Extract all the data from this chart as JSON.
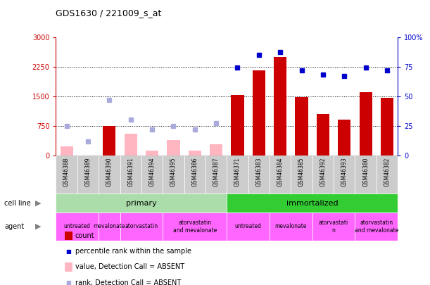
{
  "title": "GDS1630 / 221009_s_at",
  "samples": [
    "GSM46388",
    "GSM46389",
    "GSM46390",
    "GSM46391",
    "GSM46394",
    "GSM46395",
    "GSM46386",
    "GSM46387",
    "GSM46371",
    "GSM46383",
    "GSM46384",
    "GSM46385",
    "GSM46392",
    "GSM46393",
    "GSM46380",
    "GSM46382"
  ],
  "count_values": [
    null,
    null,
    750,
    null,
    null,
    null,
    null,
    null,
    1530,
    2150,
    2500,
    1480,
    1050,
    900,
    1600,
    1460
  ],
  "count_absent": [
    220,
    null,
    null,
    550,
    120,
    390,
    120,
    280,
    null,
    null,
    null,
    null,
    null,
    null,
    null,
    null
  ],
  "percentile_rank": [
    null,
    null,
    null,
    null,
    null,
    null,
    null,
    null,
    74,
    85,
    87,
    72,
    68,
    67,
    74,
    72
  ],
  "percentile_rank_absent": [
    25,
    12,
    47,
    30,
    22,
    25,
    22,
    27,
    null,
    null,
    null,
    null,
    null,
    null,
    null,
    null
  ],
  "ylim_left": [
    0,
    3000
  ],
  "ylim_right": [
    0,
    100
  ],
  "yticks_left": [
    0,
    750,
    1500,
    2250,
    3000
  ],
  "ytick_labels_left": [
    "0",
    "750",
    "1500",
    "2250",
    "3000"
  ],
  "yticks_right": [
    0,
    25,
    50,
    75,
    100
  ],
  "ytick_labels_right": [
    "0",
    "25",
    "50",
    "75",
    "100%"
  ],
  "color_count": "#CC0000",
  "color_percentile": "#0000CC",
  "color_absent_count": "#FFB6C1",
  "color_absent_rank": "#AAAADD",
  "color_primary": "#AADDAA",
  "color_immortalized": "#33CC33",
  "color_agent": "#FF66FF",
  "color_xbg": "#CCCCCC",
  "bar_width": 0.6,
  "agent_regions": [
    [
      0,
      2,
      "untreated"
    ],
    [
      2,
      3,
      "mevalonate"
    ],
    [
      3,
      5,
      "atorvastatin"
    ],
    [
      5,
      8,
      "atorvastatin\nand mevalonate"
    ],
    [
      8,
      10,
      "untreated"
    ],
    [
      10,
      12,
      "mevalonate"
    ],
    [
      12,
      14,
      "atorvastati\nn"
    ],
    [
      14,
      16,
      "atorvastatin\nand mevalonate"
    ]
  ]
}
